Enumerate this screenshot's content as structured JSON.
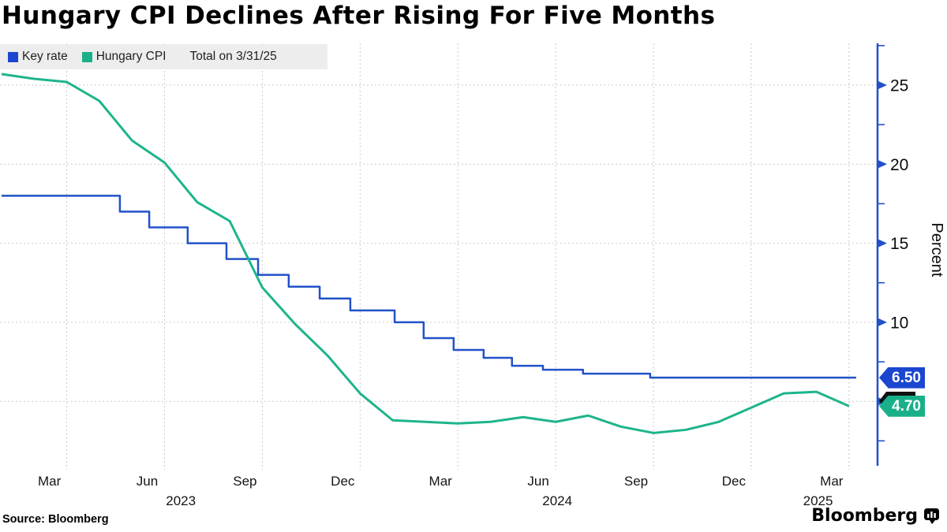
{
  "chart_data": {
    "type": "line",
    "title": "Hungary CPI Declines After Rising For Five Months",
    "legend_note": "Total on 3/31/25",
    "x_unit": "months since Jan 2023",
    "ylim": [
      1.0,
      27.6
    ],
    "grid": "dashed",
    "legend_position": "top-left",
    "y_axis": {
      "label": "Percent",
      "side": "right",
      "major_ticks": [
        5,
        10,
        15,
        20,
        25
      ],
      "labeled_ticks": [
        10,
        15,
        20,
        25
      ],
      "minor_ticks": [
        2.5,
        7.5,
        12.5,
        17.5,
        22.5,
        27.5
      ],
      "gridlines": [
        5,
        10,
        15,
        20,
        25
      ]
    },
    "x_axis": {
      "month_ticks": [
        {
          "m": 2,
          "label": "Mar"
        },
        {
          "m": 5,
          "label": "Jun"
        },
        {
          "m": 8,
          "label": "Sep"
        },
        {
          "m": 11,
          "label": "Dec"
        },
        {
          "m": 14,
          "label": "Mar"
        },
        {
          "m": 17,
          "label": "Jun"
        },
        {
          "m": 20,
          "label": "Sep"
        },
        {
          "m": 23,
          "label": "Dec"
        },
        {
          "m": 26,
          "label": "Mar"
        }
      ],
      "year_labels": [
        {
          "m": 5.5,
          "label": "2023"
        },
        {
          "m": 17.05,
          "label": "2024"
        },
        {
          "m": 25.05,
          "label": "2025"
        }
      ]
    },
    "series": [
      {
        "name": "Key rate",
        "color": "#2152c8",
        "tag_color": "#1b46d0",
        "style": "step",
        "end_label": "6.50",
        "end_value": 6.5,
        "steps": [
          [
            0,
            18
          ],
          [
            3.63,
            17
          ],
          [
            4.53,
            16
          ],
          [
            5.71,
            15
          ],
          [
            6.9,
            14
          ],
          [
            7.87,
            13
          ],
          [
            8.81,
            12.25
          ],
          [
            9.76,
            11.5
          ],
          [
            10.7,
            10.75
          ],
          [
            12.06,
            10
          ],
          [
            12.95,
            9
          ],
          [
            13.87,
            8.25
          ],
          [
            14.79,
            7.75
          ],
          [
            15.66,
            7.25
          ],
          [
            16.61,
            7
          ],
          [
            17.84,
            6.75
          ],
          [
            19.9,
            6.5
          ],
          [
            26.22,
            6.5
          ]
        ]
      },
      {
        "name": "Hungary CPI",
        "color": "#1eb48c",
        "tag_color": "#19b089",
        "style": "line",
        "end_label": "4.70",
        "end_value": 4.7,
        "categories": [
          "2023-01",
          "2023-02",
          "2023-03",
          "2023-04",
          "2023-05",
          "2023-06",
          "2023-07",
          "2023-08",
          "2023-09",
          "2023-10",
          "2023-11",
          "2023-12",
          "2024-01",
          "2024-02",
          "2024-03",
          "2024-04",
          "2024-05",
          "2024-06",
          "2024-07",
          "2024-08",
          "2024-09",
          "2024-10",
          "2024-11",
          "2024-12",
          "2025-01",
          "2025-02",
          "2025-03"
        ],
        "values": [
          25.7,
          25.4,
          25.2,
          24.0,
          21.5,
          20.1,
          17.6,
          16.4,
          12.2,
          9.9,
          7.9,
          5.5,
          3.8,
          3.7,
          3.6,
          3.7,
          4.0,
          3.7,
          4.1,
          3.4,
          3.0,
          3.2,
          3.7,
          4.6,
          5.5,
          5.6,
          4.7
        ]
      }
    ],
    "colors": {
      "axis": "#2152c8",
      "gridline": "#c9c9c9",
      "legend_bg": "#ededed",
      "date_marker": "#111111"
    }
  },
  "source": {
    "label": "Source:",
    "value": "Bloomberg"
  },
  "brand": {
    "wordmark": "Bloomberg"
  }
}
